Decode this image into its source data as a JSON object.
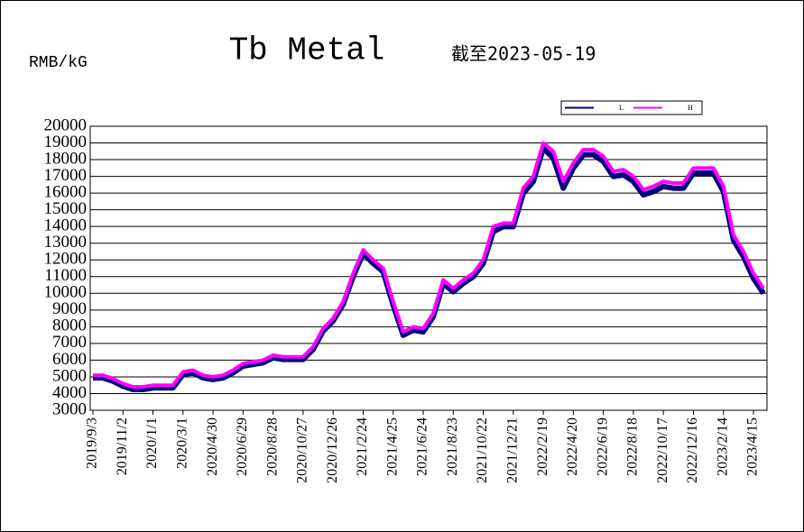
{
  "chart_data": {
    "type": "line",
    "title": "Tb Metal",
    "subtitle": "截至2023-05-19",
    "y_label": "RMB/kG",
    "categories": [
      "2019/9/3",
      null,
      null,
      "2019/11/2",
      null,
      null,
      "2020/1/1",
      null,
      null,
      "2020/3/1",
      null,
      null,
      "2020/4/30",
      null,
      null,
      "2020/6/29",
      null,
      null,
      "2020/8/28",
      null,
      null,
      "2020/10/27",
      null,
      null,
      "2020/12/26",
      null,
      null,
      "2021/2/24",
      null,
      null,
      "2021/4/25",
      null,
      null,
      "2021/6/24",
      null,
      null,
      "2021/8/23",
      null,
      null,
      "2021/10/22",
      null,
      null,
      "2021/12/21",
      null,
      null,
      "2022/2/19",
      null,
      null,
      "2022/4/20",
      null,
      null,
      "2022/6/19",
      null,
      null,
      "2022/8/18",
      null,
      null,
      "2022/10/17",
      null,
      null,
      "2022/12/16",
      null,
      null,
      "2023/2/14",
      null,
      null,
      "2023/4/15",
      null
    ],
    "series": [
      {
        "name": "L",
        "color": "#000080",
        "values": [
          5050,
          5050,
          4850,
          4550,
          4350,
          4350,
          4450,
          4450,
          4450,
          5250,
          5350,
          5050,
          4950,
          5050,
          5350,
          5750,
          5850,
          5950,
          6250,
          6150,
          6150,
          6150,
          6750,
          7850,
          8450,
          9450,
          11100,
          12500,
          11900,
          11400,
          9400,
          7600,
          7900,
          7800,
          8700,
          10700,
          10200,
          10700,
          11100,
          11900,
          13800,
          14100,
          14100,
          16100,
          16800,
          18800,
          18200,
          16400,
          17600,
          18400,
          18400,
          18000,
          17100,
          17200,
          16800,
          16000,
          16200,
          16500,
          16400,
          16400,
          17300,
          17300,
          17300,
          16200,
          13300,
          12300,
          11000,
          10100
        ]
      },
      {
        "name": "H",
        "color": "#ff00ff",
        "values": [
          5100,
          5100,
          4900,
          4600,
          4400,
          4400,
          4500,
          4500,
          4500,
          5300,
          5400,
          5100,
          5000,
          5100,
          5400,
          5800,
          5900,
          6000,
          6300,
          6200,
          6200,
          6200,
          6800,
          7900,
          8500,
          9500,
          11200,
          12600,
          12000,
          11500,
          9500,
          7700,
          8000,
          7900,
          8800,
          10800,
          10300,
          10800,
          11200,
          12000,
          14000,
          14200,
          14200,
          16300,
          17000,
          19000,
          18500,
          16700,
          17800,
          18600,
          18600,
          18200,
          17300,
          17400,
          17000,
          16200,
          16400,
          16700,
          16600,
          16600,
          17500,
          17500,
          17500,
          16400,
          13500,
          12500,
          11200,
          10300
        ]
      }
    ],
    "ylim": [
      3000,
      20000
    ],
    "yticks": [
      3000,
      4000,
      5000,
      6000,
      7000,
      8000,
      9000,
      10000,
      11000,
      12000,
      13000,
      14000,
      15000,
      16000,
      17000,
      18000,
      19000,
      20000
    ],
    "grid": true
  }
}
